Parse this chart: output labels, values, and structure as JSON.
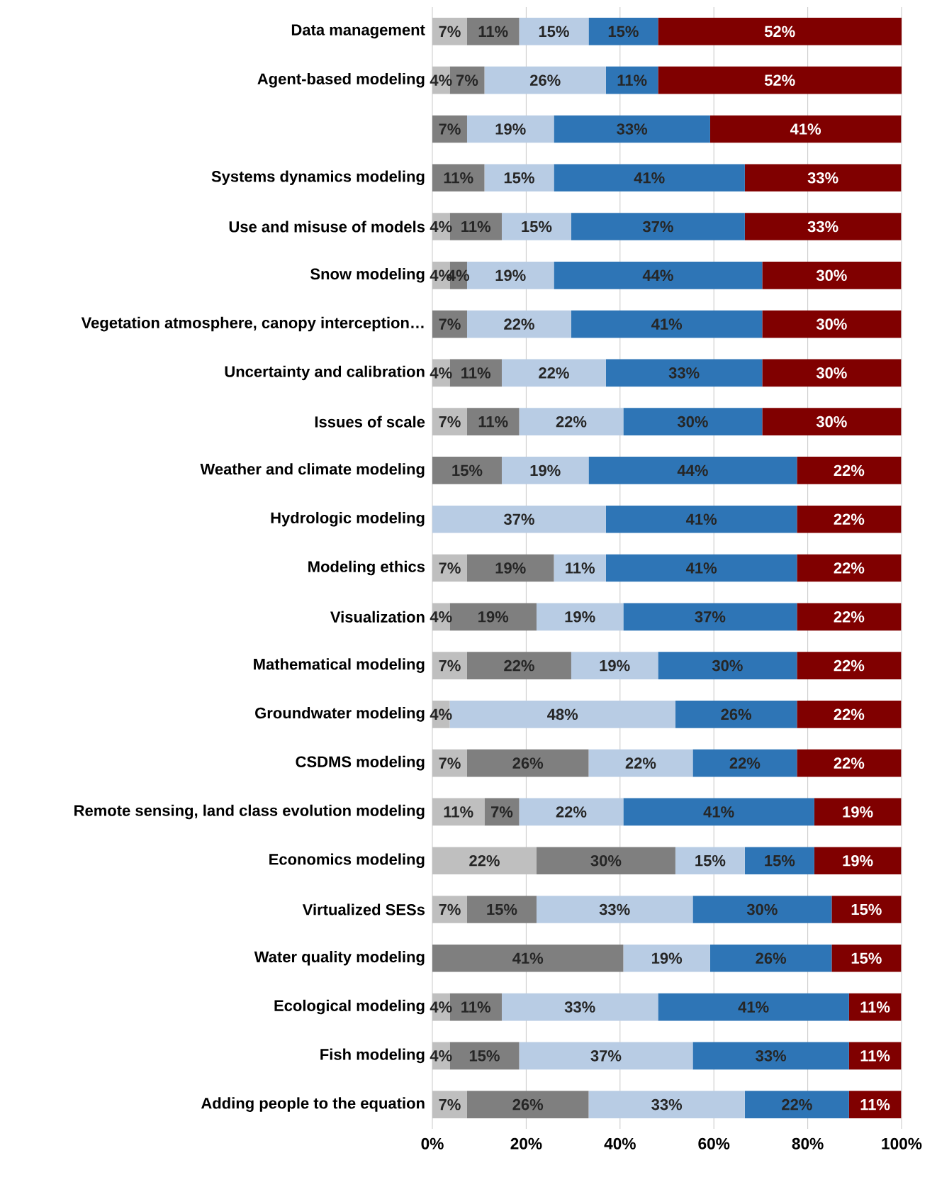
{
  "chart_data": {
    "type": "bar",
    "orientation": "horizontal",
    "stacked": true,
    "grid": "x",
    "categories": [
      "Data management",
      "Agent-based modeling",
      null,
      "Systems dynamics modeling",
      "Use and misuse of models",
      "Snow modeling",
      "Vegetation atmosphere, canopy interception…",
      "Uncertainty and calibration",
      "Issues of scale",
      "Weather and climate modeling",
      "Hydrologic modeling",
      "Modeling ethics",
      "Visualization",
      "Mathematical modeling",
      "Groundwater modeling",
      "CSDMS modeling",
      "Remote sensing, land class evolution modeling",
      "Economics modeling",
      "Virtualized SESs",
      "Water quality modeling",
      "Ecological modeling",
      "Fish modeling",
      "Adding people to the equation"
    ],
    "xlim": [
      0,
      100
    ],
    "xticks": [
      {
        "value": 0,
        "label": "0%"
      },
      {
        "value": 20,
        "label": "20%"
      },
      {
        "value": 40,
        "label": "40%"
      },
      {
        "value": 60,
        "label": "60%"
      },
      {
        "value": 80,
        "label": "80%"
      },
      {
        "value": 100,
        "label": "100%"
      }
    ],
    "series": [
      {
        "color": "#bfbfbf",
        "values": [
          7.4,
          3.7,
          0,
          0,
          3.7,
          3.7,
          0,
          3.7,
          7.4,
          0,
          0,
          7.4,
          3.7,
          7.4,
          3.7,
          7.4,
          11.1,
          22.2,
          7.4,
          0,
          3.7,
          3.7,
          7.4
        ],
        "value_labels": [
          "7%",
          "4%",
          null,
          null,
          "4%",
          "4%",
          null,
          "4%",
          "7%",
          null,
          null,
          "7%",
          "4%",
          "7%",
          "4%",
          "7%",
          "11%",
          "22%",
          "7%",
          null,
          "4%",
          "4%",
          "7%"
        ]
      },
      {
        "color": "#7f7f7f",
        "values": [
          11.1,
          7.4,
          7.4,
          11.1,
          11.1,
          3.7,
          7.4,
          11.1,
          11.1,
          14.8,
          0,
          18.5,
          18.5,
          22.2,
          0,
          25.9,
          7.4,
          29.6,
          14.8,
          40.7,
          11.1,
          14.8,
          25.9
        ],
        "value_labels": [
          "11%",
          "7%",
          "7%",
          "11%",
          "11%",
          "4%",
          "7%",
          "11%",
          "11%",
          "15%",
          null,
          "19%",
          "19%",
          "22%",
          null,
          "26%",
          "7%",
          "30%",
          "15%",
          "41%",
          "11%",
          "15%",
          "26%"
        ]
      },
      {
        "color": "#b8cce4",
        "values": [
          14.8,
          25.9,
          18.5,
          14.8,
          14.8,
          18.5,
          22.2,
          22.2,
          22.2,
          18.5,
          37.0,
          11.1,
          18.5,
          18.5,
          48.1,
          22.2,
          22.2,
          14.8,
          33.3,
          18.5,
          33.3,
          37.0,
          33.3
        ],
        "value_labels": [
          "15%",
          "26%",
          "19%",
          "15%",
          "15%",
          "19%",
          "22%",
          "22%",
          "22%",
          "19%",
          "37%",
          "11%",
          "19%",
          "19%",
          "48%",
          "22%",
          "22%",
          "15%",
          "33%",
          "19%",
          "33%",
          "37%",
          "33%"
        ]
      },
      {
        "color": "#2e75b6",
        "values": [
          14.8,
          11.1,
          33.3,
          40.7,
          37.0,
          44.4,
          40.7,
          33.3,
          29.6,
          44.4,
          40.7,
          40.7,
          37.0,
          29.6,
          25.9,
          22.2,
          40.7,
          14.8,
          29.6,
          25.9,
          40.7,
          33.3,
          22.2
        ],
        "value_labels": [
          "15%",
          "11%",
          "33%",
          "41%",
          "37%",
          "44%",
          "41%",
          "33%",
          "30%",
          "44%",
          "41%",
          "41%",
          "37%",
          "30%",
          "26%",
          "22%",
          "41%",
          "15%",
          "30%",
          "26%",
          "41%",
          "33%",
          "22%"
        ]
      },
      {
        "color": "#800000",
        "values": [
          51.9,
          51.9,
          40.7,
          33.3,
          33.3,
          29.6,
          29.6,
          29.6,
          29.6,
          22.2,
          22.2,
          22.2,
          22.2,
          22.2,
          22.2,
          22.2,
          18.5,
          18.5,
          14.8,
          14.8,
          11.1,
          11.1,
          11.1
        ],
        "value_labels": [
          "52%",
          "52%",
          "41%",
          "33%",
          "33%",
          "30%",
          "30%",
          "30%",
          "30%",
          "22%",
          "22%",
          "22%",
          "22%",
          "22%",
          "22%",
          "22%",
          "19%",
          "19%",
          "15%",
          "15%",
          "11%",
          "11%",
          "11%"
        ]
      }
    ]
  }
}
